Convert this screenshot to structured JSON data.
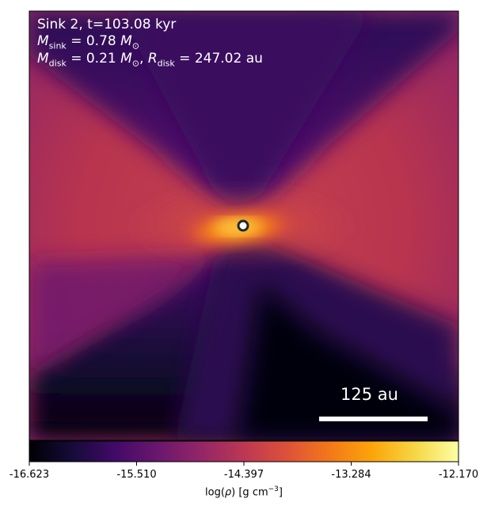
{
  "figure": {
    "title_line1": "Sink 2, t=103.08 kyr",
    "msink_symbol": "M",
    "msink_sub": "sink",
    "msink_value": " = 0.78 ",
    "msun_symbol": "M",
    "msun_sub": "⊙",
    "mdisk_symbol": "M",
    "mdisk_sub": "disk",
    "mdisk_value": " = 0.21 ",
    "mdisk_sun_symbol": "M",
    "mdisk_sun_sub": "⊙",
    "rdisk_sep": ", ",
    "rdisk_symbol": "R",
    "rdisk_sub": "disk",
    "rdisk_value": " = 247.02 au"
  },
  "scalebar": {
    "label": "125 au"
  },
  "colorbar": {
    "ticks": [
      "-16.623",
      "-15.510",
      "-14.397",
      "-13.284",
      "-12.170"
    ],
    "label_prefix": "log(",
    "label_rho": "ρ",
    "label_mid": ") [g cm",
    "label_exp": "−3",
    "label_suffix": "]",
    "colormap": "inferno",
    "vmin": -16.623,
    "vmax": -12.17
  },
  "colors": {
    "inferno_dark": "#000004",
    "inferno_purple": "#420a68",
    "inferno_magenta": "#932667",
    "inferno_red": "#dd513a",
    "inferno_orange": "#fca50a",
    "inferno_yellow": "#fcffa4"
  }
}
